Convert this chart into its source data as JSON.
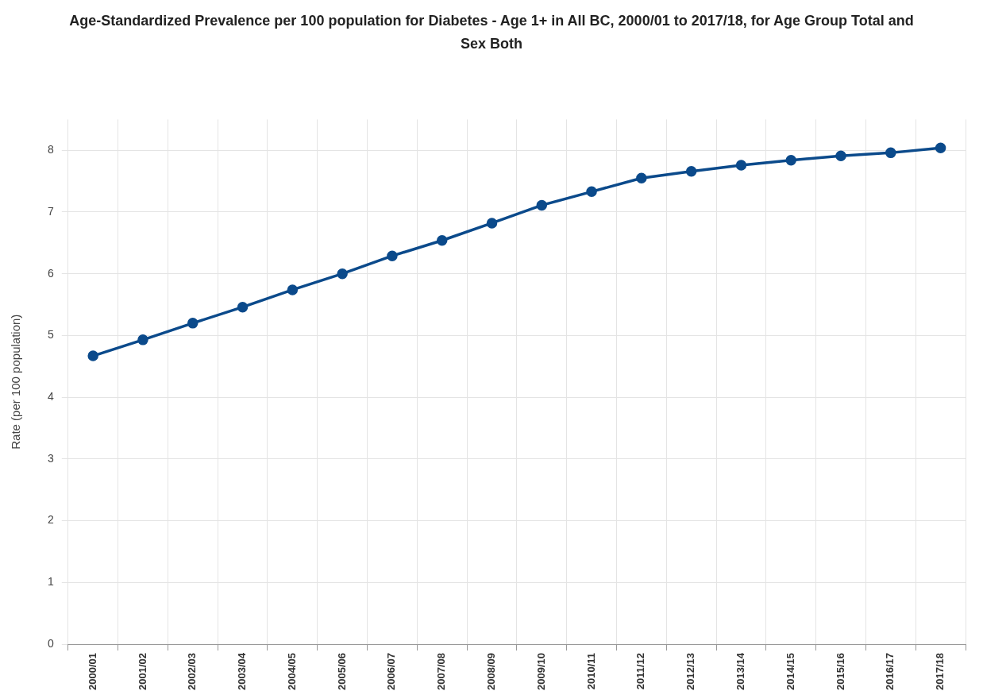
{
  "chart_data": {
    "type": "line",
    "title": "Age-Standardized Prevalence per 100 population for Diabetes - Age 1+ in All BC, 2000/01 to 2017/18, for Age Group Total and Sex Both",
    "ylabel": "Rate (per 100 population)",
    "categories": [
      "2000/01",
      "2001/02",
      "2002/03",
      "2003/04",
      "2004/05",
      "2005/06",
      "2006/07",
      "2007/08",
      "2008/09",
      "2009/10",
      "2010/11",
      "2011/12",
      "2012/13",
      "2013/14",
      "2014/15",
      "2015/16",
      "2016/17",
      "2017/18"
    ],
    "series": [
      {
        "color": "#0b4a8b",
        "values": [
          4.67,
          4.93,
          5.2,
          5.46,
          5.74,
          6.0,
          6.29,
          6.54,
          6.82,
          7.11,
          7.33,
          7.55,
          7.66,
          7.76,
          7.84,
          7.91,
          7.96,
          8.04
        ]
      }
    ],
    "ylim": [
      0,
      8.5
    ],
    "yticks": [
      0,
      1,
      2,
      3,
      4,
      5,
      6,
      7,
      8
    ],
    "grid": true,
    "marker": "circle",
    "line_style": "solid"
  }
}
